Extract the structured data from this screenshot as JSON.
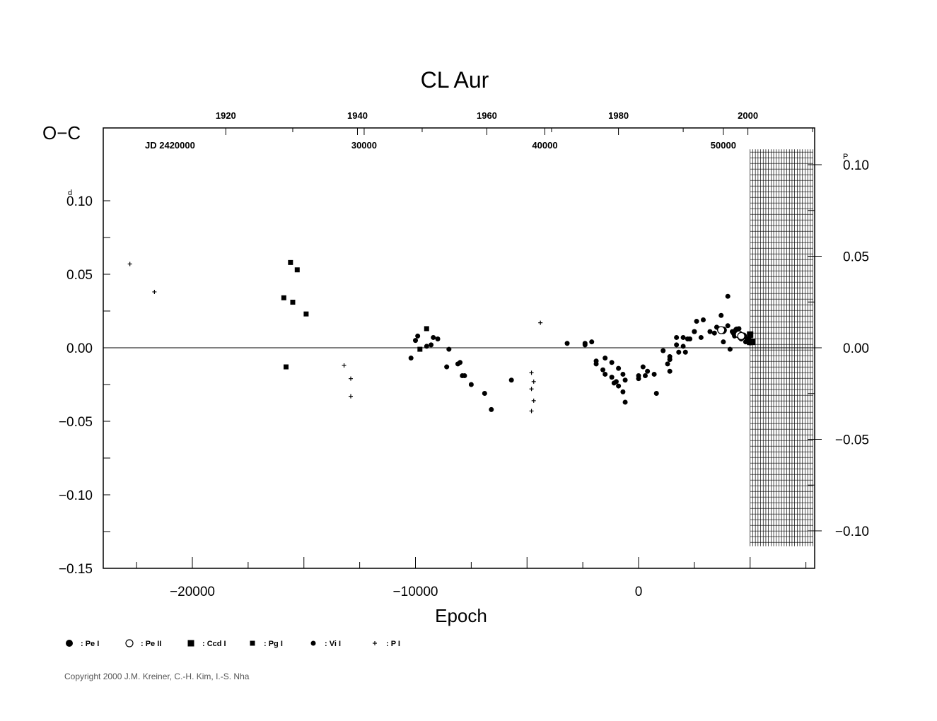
{
  "chart_data": {
    "type": "scatter",
    "title": "CL Aur",
    "ylabel": "O−C",
    "xlabel": "Epoch",
    "xlim": [
      -24000,
      8000
    ],
    "ylim": [
      -0.15,
      0.15
    ],
    "right_axis_ylim": [
      -0.1,
      0.1
    ],
    "grid": false,
    "zero_line": true,
    "left_y_ticks": [
      {
        "value": 0.1,
        "label": "0.10",
        "unit_mark": "d"
      },
      {
        "value": 0.05,
        "label": "0.05"
      },
      {
        "value": 0.0,
        "label": "0.00"
      },
      {
        "value": -0.05,
        "label": "−0.05"
      },
      {
        "value": -0.1,
        "label": "−0.10"
      },
      {
        "value": -0.15,
        "label": "−0.15"
      }
    ],
    "right_y_ticks": [
      {
        "value": 0.1,
        "label": "0.10",
        "unit_mark": "P"
      },
      {
        "value": 0.05,
        "label": "0.05"
      },
      {
        "value": 0.0,
        "label": "0.00"
      },
      {
        "value": -0.05,
        "label": "−0.05"
      },
      {
        "value": -0.1,
        "label": "−0.10"
      }
    ],
    "x_ticks": [
      {
        "value": -20000,
        "label": "−20000"
      },
      {
        "value": -10000,
        "label": "−10000"
      },
      {
        "value": 0,
        "label": "0"
      }
    ],
    "year_ticks": [
      {
        "epoch": -18500,
        "label": "1920"
      },
      {
        "epoch": -12600,
        "label": "1940"
      },
      {
        "epoch": -6800,
        "label": "1960"
      },
      {
        "epoch": -900,
        "label": "1980"
      },
      {
        "epoch": 4900,
        "label": "2000"
      }
    ],
    "jd_label": "JD  2420000",
    "jd_ticks": [
      {
        "epoch": -12300,
        "label": "30000"
      },
      {
        "epoch": -4200,
        "label": "40000"
      },
      {
        "epoch": 3800,
        "label": "50000"
      }
    ],
    "hatched_region": {
      "x_from": 5000,
      "x_to": 8000,
      "y_from": -0.135,
      "y_to": 0.135
    },
    "legend": [
      {
        "symbol": "big-dot",
        "label": ": Pe I"
      },
      {
        "symbol": "open-circle",
        "label": ": Pe II"
      },
      {
        "symbol": "big-square",
        "label": ": Ccd I"
      },
      {
        "symbol": "small-square",
        "label": ": Pg I"
      },
      {
        "symbol": "small-dot",
        "label": ": Vi I"
      },
      {
        "symbol": "plus",
        "label": ": P I"
      }
    ],
    "series": [
      {
        "name": "P I",
        "symbol": "plus",
        "points": [
          [
            -22800,
            0.057
          ],
          [
            -21700,
            0.038
          ],
          [
            -13200,
            -0.012
          ],
          [
            -12900,
            -0.021
          ],
          [
            -12900,
            -0.033
          ],
          [
            -4800,
            -0.017
          ],
          [
            -4700,
            -0.023
          ],
          [
            -4800,
            -0.028
          ],
          [
            -4700,
            -0.036
          ],
          [
            -4800,
            -0.043
          ],
          [
            -4400,
            0.017
          ]
        ]
      },
      {
        "name": "Pg I",
        "symbol": "small-square",
        "points": [
          [
            -15900,
            0.034
          ],
          [
            -15800,
            -0.013
          ],
          [
            -15600,
            0.058
          ],
          [
            -15500,
            0.031
          ],
          [
            -15300,
            0.053
          ],
          [
            -14900,
            0.023
          ],
          [
            -9800,
            -0.001
          ],
          [
            -9500,
            0.013
          ]
        ]
      },
      {
        "name": "Vi I",
        "symbol": "small-dot",
        "points": [
          [
            -10200,
            -0.007
          ],
          [
            -10000,
            0.005
          ],
          [
            -9900,
            0.008
          ],
          [
            -9500,
            0.001
          ],
          [
            -9300,
            0.002
          ],
          [
            -9200,
            0.007
          ],
          [
            -9000,
            0.006
          ],
          [
            -8600,
            -0.013
          ],
          [
            -8500,
            -0.001
          ],
          [
            -8100,
            -0.011
          ],
          [
            -8000,
            -0.01
          ],
          [
            -7900,
            -0.019
          ],
          [
            -7800,
            -0.019
          ],
          [
            -7500,
            -0.025
          ],
          [
            -6900,
            -0.031
          ],
          [
            -6600,
            -0.042
          ],
          [
            -5700,
            -0.022
          ],
          [
            -3200,
            0.003
          ],
          [
            -2400,
            0.003
          ],
          [
            -2400,
            0.002
          ],
          [
            -2100,
            0.004
          ],
          [
            -1900,
            -0.009
          ],
          [
            -1900,
            -0.011
          ],
          [
            -1500,
            -0.007
          ],
          [
            -1600,
            -0.015
          ],
          [
            -1500,
            -0.018
          ],
          [
            -1200,
            -0.01
          ],
          [
            -1200,
            -0.02
          ],
          [
            -1100,
            -0.024
          ],
          [
            -1000,
            -0.023
          ],
          [
            -900,
            -0.014
          ],
          [
            -900,
            -0.026
          ],
          [
            -700,
            -0.018
          ],
          [
            -700,
            -0.03
          ],
          [
            -600,
            -0.022
          ],
          [
            -600,
            -0.037
          ],
          [
            0,
            -0.019
          ],
          [
            0,
            -0.021
          ],
          [
            200,
            -0.013
          ],
          [
            300,
            -0.019
          ],
          [
            400,
            -0.016
          ],
          [
            700,
            -0.018
          ],
          [
            800,
            -0.031
          ],
          [
            1100,
            -0.002
          ],
          [
            1300,
            -0.011
          ],
          [
            1400,
            -0.006
          ],
          [
            1400,
            -0.008
          ],
          [
            1400,
            -0.016
          ],
          [
            1700,
            0.007
          ],
          [
            1700,
            0.002
          ],
          [
            1800,
            -0.003
          ],
          [
            2000,
            0.007
          ],
          [
            2000,
            0.001
          ],
          [
            2100,
            -0.003
          ],
          [
            2200,
            0.006
          ],
          [
            2300,
            0.006
          ],
          [
            2500,
            0.011
          ],
          [
            2500,
            0.011
          ],
          [
            2600,
            0.018
          ],
          [
            2800,
            0.007
          ],
          [
            2900,
            0.019
          ],
          [
            3200,
            0.011
          ],
          [
            3400,
            0.01
          ],
          [
            3500,
            0.014
          ],
          [
            3600,
            0.013
          ],
          [
            3700,
            0.022
          ],
          [
            3800,
            0.004
          ],
          [
            3800,
            0.011
          ],
          [
            4000,
            0.015
          ],
          [
            4000,
            0.035
          ],
          [
            4100,
            -0.001
          ],
          [
            4200,
            0.011
          ],
          [
            4300,
            0.008
          ],
          [
            4400,
            0.01
          ],
          [
            4500,
            0.013
          ],
          [
            4600,
            0.006
          ],
          [
            4700,
            0.008
          ],
          [
            4800,
            0.004
          ],
          [
            4900,
            0.006
          ],
          [
            5000,
            0.008
          ],
          [
            5000,
            0.005
          ]
        ]
      },
      {
        "name": "Pe I",
        "symbol": "big-dot",
        "points": [
          [
            3800,
            0.012
          ],
          [
            4300,
            0.01
          ],
          [
            4400,
            0.012
          ],
          [
            4600,
            0.007
          ],
          [
            4700,
            0.008
          ],
          [
            5000,
            0.004
          ]
        ]
      },
      {
        "name": "Pe II",
        "symbol": "open-circle",
        "points": [
          [
            3700,
            0.012
          ],
          [
            4500,
            0.009
          ],
          [
            4600,
            0.008
          ]
        ]
      },
      {
        "name": "Ccd I",
        "symbol": "big-square",
        "points": [
          [
            4900,
            0.005
          ],
          [
            5000,
            0.004
          ],
          [
            5100,
            0.004
          ],
          [
            5000,
            0.009
          ]
        ]
      }
    ]
  },
  "copyright": "Copyright 2000 J.M. Kreiner, C.-H. Kim, I.-S. Nha"
}
